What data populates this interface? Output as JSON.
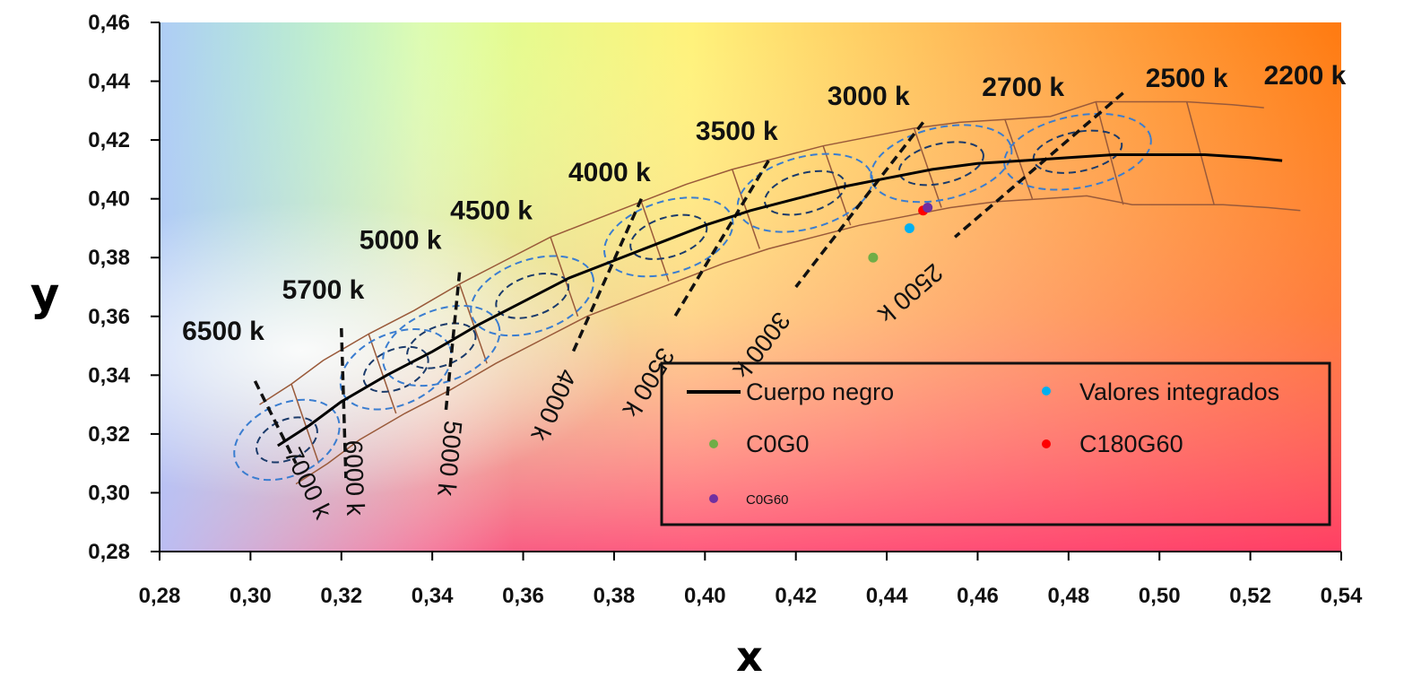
{
  "chart_data": {
    "type": "scatter",
    "xlabel": "x",
    "ylabel": "y",
    "xlim": [
      0.28,
      0.54
    ],
    "ylim": [
      0.28,
      0.46
    ],
    "x_ticks": [
      "0,28",
      "0,30",
      "0,32",
      "0,34",
      "0,36",
      "0,38",
      "0,40",
      "0,42",
      "0,44",
      "0,46",
      "0,48",
      "0,50",
      "0,52",
      "0,54"
    ],
    "y_ticks": [
      "0,28",
      "0,30",
      "0,32",
      "0,34",
      "0,36",
      "0,38",
      "0,40",
      "0,42",
      "0,44",
      "0,46"
    ],
    "legend_position": "bottom-right",
    "blackbody_locus": {
      "name": "Cuerpo negro",
      "color": "#000000",
      "x": [
        0.306,
        0.313,
        0.32,
        0.33,
        0.34,
        0.35,
        0.36,
        0.37,
        0.38,
        0.39,
        0.4,
        0.41,
        0.42,
        0.43,
        0.44,
        0.45,
        0.46,
        0.47,
        0.48,
        0.49,
        0.5,
        0.51,
        0.52,
        0.527
      ],
      "y": [
        0.316,
        0.323,
        0.331,
        0.34,
        0.348,
        0.357,
        0.365,
        0.373,
        0.379,
        0.385,
        0.391,
        0.396,
        0.4,
        0.404,
        0.407,
        0.41,
        0.412,
        0.413,
        0.414,
        0.415,
        0.415,
        0.415,
        0.414,
        0.413
      ]
    },
    "points": [
      {
        "name": "C0G0",
        "x": 0.437,
        "y": 0.38,
        "color": "#70ad47"
      },
      {
        "name": "Valores integrados",
        "x": 0.445,
        "y": 0.39,
        "color": "#00b0f0"
      },
      {
        "name": "C180G60",
        "x": 0.448,
        "y": 0.396,
        "color": "#ff0000"
      },
      {
        "name": "C0G60",
        "x": 0.449,
        "y": 0.397,
        "color": "#7030a0"
      }
    ],
    "cct_labels": [
      {
        "text": "6500 k",
        "x": 0.294,
        "y": 0.352
      },
      {
        "text": "5700 k",
        "x": 0.316,
        "y": 0.366
      },
      {
        "text": "5000 k",
        "x": 0.333,
        "y": 0.383
      },
      {
        "text": "4500 k",
        "x": 0.353,
        "y": 0.393
      },
      {
        "text": "4000 k",
        "x": 0.379,
        "y": 0.406
      },
      {
        "text": "3500 k",
        "x": 0.407,
        "y": 0.42
      },
      {
        "text": "3000 k",
        "x": 0.436,
        "y": 0.432
      },
      {
        "text": "2700 k",
        "x": 0.47,
        "y": 0.435
      },
      {
        "text": "2500 k",
        "x": 0.506,
        "y": 0.438
      },
      {
        "text": "2200 k",
        "x": 0.532,
        "y": 0.439
      }
    ],
    "isotemperature_lines": [
      {
        "text": "7000 k",
        "x1": 0.301,
        "y1": 0.338,
        "x2": 0.31,
        "y2": 0.31,
        "lx": 0.311,
        "ly": 0.302
      },
      {
        "text": "6000 k",
        "x1": 0.32,
        "y1": 0.356,
        "x2": 0.321,
        "y2": 0.305,
        "lx": 0.321,
        "ly": 0.305
      },
      {
        "text": "5000 k",
        "x1": 0.346,
        "y1": 0.375,
        "x2": 0.343,
        "y2": 0.328,
        "lx": 0.342,
        "ly": 0.312
      },
      {
        "text": "4000 k",
        "x1": 0.386,
        "y1": 0.4,
        "x2": 0.371,
        "y2": 0.348,
        "lx": 0.365,
        "ly": 0.331
      },
      {
        "text": "3500 k",
        "x1": 0.414,
        "y1": 0.413,
        "x2": 0.393,
        "y2": 0.359,
        "lx": 0.386,
        "ly": 0.339
      },
      {
        "text": "3000 k",
        "x1": 0.448,
        "y1": 0.426,
        "x2": 0.42,
        "y2": 0.37,
        "lx": 0.411,
        "ly": 0.352
      },
      {
        "text": "2500 k",
        "x1": 0.492,
        "y1": 0.436,
        "x2": 0.455,
        "y2": 0.387,
        "lx": 0.444,
        "ly": 0.37
      }
    ],
    "quadrangles": [
      {
        "top": [
          0.313,
          0.341
        ],
        "bottom": [
          0.303,
          0.331
        ],
        "top_next": [
          0.327,
          0.351
        ],
        "bottom_next": [
          0.321,
          0.327
        ]
      }
    ],
    "legend": [
      {
        "label": "Cuerpo negro",
        "marker": "line",
        "color": "#000000"
      },
      {
        "label": "Valores integrados",
        "marker": "dot",
        "color": "#00b0f0"
      },
      {
        "label": "C0G0",
        "marker": "dot",
        "color": "#70ad47"
      },
      {
        "label": "C180G60",
        "marker": "dot",
        "color": "#ff0000"
      },
      {
        "label": "C0G60",
        "marker": "dot",
        "color": "#7030a0",
        "small": true
      }
    ]
  }
}
